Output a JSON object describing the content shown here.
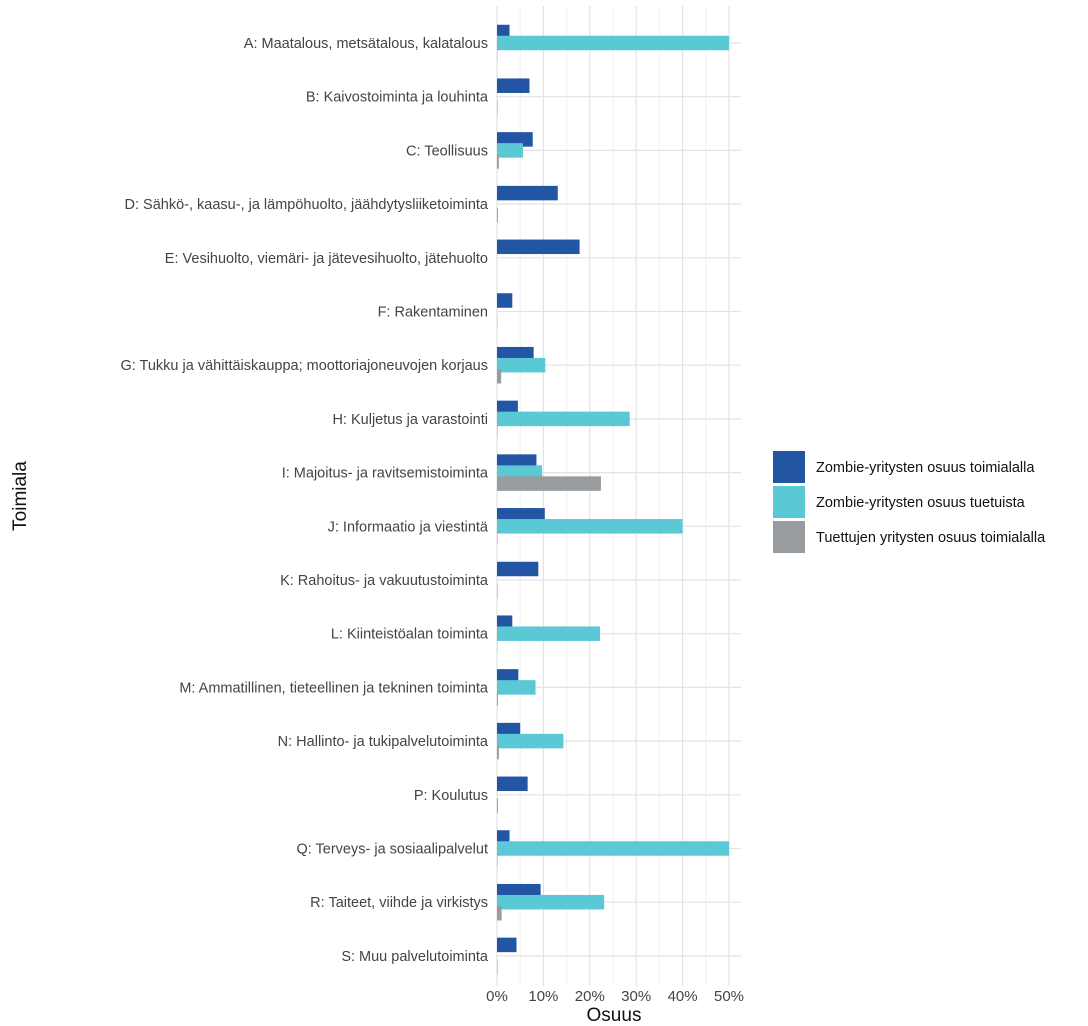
{
  "chart_data": {
    "type": "bar",
    "orientation": "horizontal",
    "xlabel": "Osuus",
    "ylabel": "Toimiala",
    "xlim": [
      0,
      50
    ],
    "x_ticks": [
      0,
      10,
      20,
      30,
      40,
      50
    ],
    "x_tick_labels": [
      "0%",
      "10%",
      "20%",
      "30%",
      "40%",
      "50%"
    ],
    "x_unit": "%",
    "grid": true,
    "legend_position": "right",
    "categories": [
      "A: Maatalous, metsätalous, kalatalous",
      "B: Kaivostoiminta ja louhinta",
      "C: Teollisuus",
      "D: Sähkö-, kaasu-, ja lämpöhuolto, jäähdytysliiketoiminta",
      "E: Vesihuolto, viemäri- ja jätevesihuolto, jätehuolto",
      "F: Rakentaminen",
      "G: Tukku ja vähittäiskauppa; moottoriajoneuvojen korjaus",
      "H: Kuljetus ja varastointi",
      "I: Majoitus- ja ravitsemistoiminta",
      "J: Informaatio ja viestintä",
      "K: Rahoitus- ja vakuutustoiminta",
      "L: Kiinteistöalan toiminta",
      "M: Ammatillinen, tieteellinen ja tekninen toiminta",
      "N: Hallinto- ja tukipalvelutoiminta",
      "P: Koulutus",
      "Q: Terveys- ja sosiaalipalvelut",
      "R: Taiteet, viihde ja virkistys",
      "S: Muu palvelutoiminta"
    ],
    "series": [
      {
        "name": "Zombie-yritysten osuus toimialalla",
        "color": "#2255a4",
        "values": [
          2.7,
          7.0,
          7.7,
          13.1,
          17.8,
          3.3,
          7.9,
          4.5,
          8.5,
          10.3,
          8.9,
          3.3,
          4.6,
          5.0,
          6.6,
          2.7,
          9.4,
          4.2
        ]
      },
      {
        "name": "Zombie-yritysten osuus tuetuista",
        "color": "#5bc8d6",
        "values": [
          50.0,
          0,
          5.6,
          0,
          0,
          0,
          10.4,
          28.6,
          9.7,
          40.0,
          0,
          22.2,
          8.3,
          14.3,
          0,
          50.0,
          23.1,
          0
        ]
      },
      {
        "name": "Tuettujen yritysten osuus toimialalla",
        "color": "#999c9e",
        "values": [
          0.05,
          0.1,
          0.4,
          0.2,
          0,
          0.05,
          0.9,
          0.1,
          22.4,
          0.1,
          0.1,
          0.05,
          0.2,
          0.4,
          0.2,
          0.1,
          1.0,
          0.1
        ]
      }
    ]
  }
}
